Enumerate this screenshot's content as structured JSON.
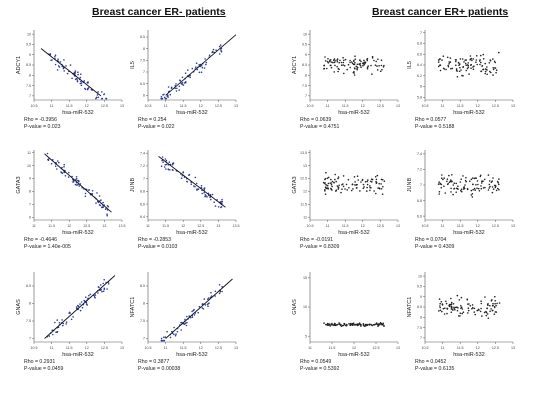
{
  "titles": {
    "er_neg": "Breast cancer ER- patients",
    "er_pos": "Breast cancer ER+ patients"
  },
  "colors": {
    "er_neg_points": "#2b3a9c",
    "er_pos_points": "#222222",
    "fit_line": "#111111",
    "axis": "#555555"
  },
  "chart_data": [
    {
      "type": "scatter",
      "group": "ER-",
      "ylabel": "ADCY1",
      "xlabel": "hsa-miR-532",
      "stats": [
        "Rho = -0.3956",
        "P-value = 0.023"
      ],
      "xticks": [
        "10.5",
        "11",
        "11.5",
        "12",
        "12.5",
        "13"
      ],
      "yticks": [
        "7",
        "7.5",
        "8",
        "8.5",
        "9",
        "9.5",
        "10"
      ],
      "xlim": [
        10.5,
        13
      ],
      "ylim": [
        6.8,
        10.2
      ],
      "fit": [
        [
          10.7,
          9.3
        ],
        [
          12.4,
          7.0
        ]
      ],
      "n": 80
    },
    {
      "type": "scatter",
      "group": "ER-",
      "ylabel": "IL5",
      "xlabel": "hsa-miR-532",
      "stats": [
        "Rho = 0.254",
        "P-value = 0.022"
      ],
      "xticks": [
        "10.5",
        "11",
        "11.5",
        "12",
        "12.5",
        "13"
      ],
      "yticks": [
        "6",
        "6.5",
        "7",
        "7.5",
        "8",
        "8.5"
      ],
      "xlim": [
        10.5,
        13
      ],
      "ylim": [
        5.8,
        8.8
      ],
      "fit": [
        [
          11.0,
          6.0
        ],
        [
          13.0,
          8.6
        ]
      ],
      "n": 80
    },
    {
      "type": "scatter",
      "group": "ER-",
      "ylabel": "GATA3",
      "xlabel": "hsa-miR-532",
      "stats": [
        "Rho = -0.4646",
        "P-value = 1.40e-005"
      ],
      "xticks": [
        "11",
        "11.5",
        "12",
        "12.5",
        "13",
        "13.5"
      ],
      "yticks": [
        "6",
        "7",
        "8",
        "9",
        "10",
        "11"
      ],
      "xlim": [
        11,
        13.5
      ],
      "ylim": [
        5.8,
        11.2
      ],
      "fit": [
        [
          11.3,
          10.9
        ],
        [
          13.2,
          6.4
        ]
      ],
      "n": 85
    },
    {
      "type": "scatter",
      "group": "ER-",
      "ylabel": "JUNB",
      "xlabel": "hsa-miR-532",
      "stats": [
        "Rho = -0.2853",
        "P-value = 0.0103"
      ],
      "xticks": [
        "11",
        "11.5",
        "12",
        "12.5",
        "13",
        "13.5"
      ],
      "yticks": [
        "6.4",
        "6.6",
        "6.8",
        "7",
        "7.2",
        "7.4"
      ],
      "xlim": [
        11,
        13.5
      ],
      "ylim": [
        6.35,
        7.45
      ],
      "fit": [
        [
          11.3,
          7.35
        ],
        [
          13.2,
          6.55
        ]
      ],
      "n": 85
    },
    {
      "type": "scatter",
      "group": "ER-",
      "ylabel": "GNAS",
      "xlabel": "hsa-miR-532",
      "stats": [
        "Rho = 0.2931",
        "P-value = 0.0459"
      ],
      "xticks": [
        "10.5",
        "11",
        "11.5",
        "12",
        "12.5",
        "13"
      ],
      "yticks": [
        "7",
        "7.5",
        "8",
        "8.5"
      ],
      "xlim": [
        10.5,
        13
      ],
      "ylim": [
        6.9,
        8.9
      ],
      "fit": [
        [
          10.8,
          7.0
        ],
        [
          12.8,
          8.8
        ]
      ],
      "n": 70
    },
    {
      "type": "scatter",
      "group": "ER-",
      "ylabel": "NFATC1",
      "xlabel": "hsa-miR-532",
      "stats": [
        "Rho = 0.3877",
        "P-value = 0.00038"
      ],
      "xticks": [
        "10.5",
        "11",
        "11.5",
        "12",
        "12.5",
        "13"
      ],
      "yticks": [
        "7",
        "7.5",
        "8",
        "8.5"
      ],
      "xlim": [
        10.5,
        13
      ],
      "ylim": [
        6.9,
        8.9
      ],
      "fit": [
        [
          11.0,
          7.0
        ],
        [
          12.9,
          8.7
        ]
      ],
      "n": 70
    },
    {
      "type": "scatter",
      "group": "ER+",
      "ylabel": "ADCY1",
      "xlabel": "hsa-miR-532",
      "stats": [
        "Rho = 0.0639",
        "P-value = 0.4751"
      ],
      "xticks": [
        "10.5",
        "11",
        "11.5",
        "12",
        "12.5",
        "13"
      ],
      "yticks": [
        "7",
        "7.5",
        "8",
        "8.5",
        "9",
        "9.5",
        "10"
      ],
      "xlim": [
        10.5,
        13
      ],
      "ylim": [
        6.8,
        10.2
      ],
      "n": 110
    },
    {
      "type": "scatter",
      "group": "ER+",
      "ylabel": "IL5",
      "xlabel": "hsa-miR-532",
      "stats": [
        "Rho = 0.0577",
        "P-value = 0.5188"
      ],
      "xticks": [
        "10.5",
        "11",
        "11.5",
        "12",
        "12.5",
        "13"
      ],
      "yticks": [
        "5.8",
        "6",
        "6.2",
        "6.4",
        "6.6",
        "6.8",
        "7"
      ],
      "xlim": [
        10.5,
        13
      ],
      "ylim": [
        5.75,
        7.05
      ],
      "n": 110
    },
    {
      "type": "scatter",
      "group": "ER+",
      "ylabel": "GATA3",
      "xlabel": "hsa-miR-532",
      "stats": [
        "Rho = -0.0191",
        "P-value = 0.8309"
      ],
      "xticks": [
        "10.5",
        "11",
        "11.5",
        "12",
        "12.5",
        "13"
      ],
      "yticks": [
        "11",
        "11.5",
        "12",
        "12.5",
        "13",
        "13.5"
      ],
      "xlim": [
        10.5,
        13
      ],
      "ylim": [
        10.9,
        13.6
      ],
      "n": 110
    },
    {
      "type": "scatter",
      "group": "ER+",
      "ylabel": "JUNB",
      "xlabel": "hsa-miR-532",
      "stats": [
        "Rho = 0.0704",
        "P-value = 0.4309"
      ],
      "xticks": [
        "10.5",
        "11",
        "11.5",
        "12",
        "12.5",
        "13"
      ],
      "yticks": [
        "6.6",
        "6.8",
        "7",
        "7.2",
        "7.4"
      ],
      "xlim": [
        10.5,
        13
      ],
      "ylim": [
        6.55,
        7.45
      ],
      "n": 110
    },
    {
      "type": "scatter",
      "group": "ER+",
      "ylabel": "GNAS",
      "xlabel": "hsa-miR-532",
      "stats": [
        "Rho = 0.0549",
        "P-value = 0.5392"
      ],
      "xticks": [
        "11",
        "11.5",
        "12",
        "12.5",
        "13"
      ],
      "yticks": [
        "5",
        "10",
        "15"
      ],
      "xlim": [
        11,
        13
      ],
      "ylim": [
        4,
        16
      ],
      "n": 110
    },
    {
      "type": "scatter",
      "group": "ER+",
      "ylabel": "NFATC1",
      "xlabel": "hsa-miR-532",
      "stats": [
        "Rho = 0.0452",
        "P-value = 0.6135"
      ],
      "xticks": [
        "10.5",
        "11",
        "11.5",
        "12",
        "12.5",
        "13"
      ],
      "yticks": [
        "7",
        "7.5",
        "8",
        "8.5",
        "9",
        "9.5",
        "10"
      ],
      "xlim": [
        10.5,
        13
      ],
      "ylim": [
        6.8,
        10.2
      ],
      "n": 110
    }
  ]
}
